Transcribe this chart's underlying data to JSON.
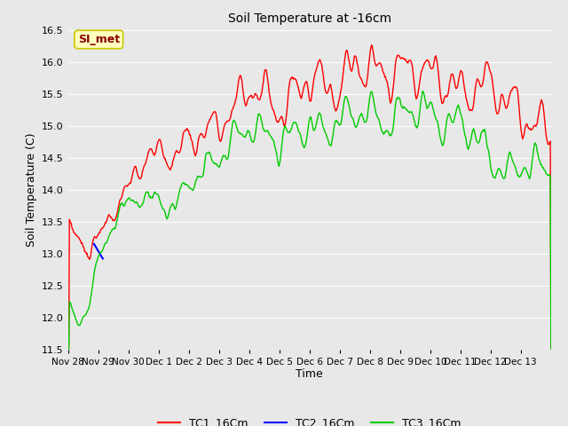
{
  "title": "Soil Temperature at -16cm",
  "xlabel": "Time",
  "ylabel": "Soil Temperature (C)",
  "ylim": [
    11.5,
    16.5
  ],
  "yticks": [
    11.5,
    12.0,
    12.5,
    13.0,
    13.5,
    14.0,
    14.5,
    15.0,
    15.5,
    16.0,
    16.5
  ],
  "annotation_text": "SI_met",
  "annotation_color": "#8B0000",
  "annotation_bg": "#FFFFC0",
  "annotation_border": "#C8C800",
  "bg_color": "#E8E8E8",
  "grid_color": "#FFFFFF",
  "tc1_color": "#FF0000",
  "tc2_color": "#0000FF",
  "tc3_color": "#00CC00",
  "legend_entries": [
    "TC1_16Cm",
    "TC2_16Cm",
    "TC3_16Cm"
  ],
  "x_tick_labels": [
    "Nov 28",
    "Nov 29",
    "Nov 30",
    "Dec 1",
    "Dec 2",
    "Dec 3",
    "Dec 4",
    "Dec 5",
    "Dec 6",
    "Dec 7",
    "Dec 8",
    "Dec 9",
    "Dec 10",
    "Dec 11",
    "Dec 12",
    "Dec 13"
  ],
  "figsize": [
    6.4,
    4.8
  ],
  "dpi": 100
}
